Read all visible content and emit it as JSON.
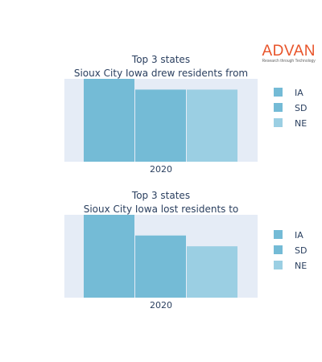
{
  "logo": {
    "name": "ADVAN",
    "tagline": "Research through Technology"
  },
  "colors": {
    "plot_bg": "#e5ecf6",
    "IA": "#74bbd6",
    "SD": "#74bbd6",
    "NE": "#9bcfe3",
    "text": "#2a3f5f"
  },
  "chart_data": [
    {
      "type": "bar",
      "title_lines": [
        "Top 3 states",
        "Sioux City Iowa drew residents from"
      ],
      "categories": [
        "2020"
      ],
      "series": [
        {
          "name": "IA",
          "values": [
            100
          ]
        },
        {
          "name": "SD",
          "values": [
            87
          ]
        },
        {
          "name": "NE",
          "values": [
            87
          ]
        }
      ],
      "ylim": [
        0,
        100
      ],
      "grid": false,
      "legend": "right"
    },
    {
      "type": "bar",
      "title_lines": [
        "Top 3 states",
        "Sioux City Iowa lost residents to"
      ],
      "categories": [
        "2020"
      ],
      "series": [
        {
          "name": "IA",
          "values": [
            100
          ]
        },
        {
          "name": "SD",
          "values": [
            75
          ]
        },
        {
          "name": "NE",
          "values": [
            62
          ]
        }
      ],
      "ylim": [
        0,
        100
      ],
      "grid": false,
      "legend": "right"
    }
  ]
}
